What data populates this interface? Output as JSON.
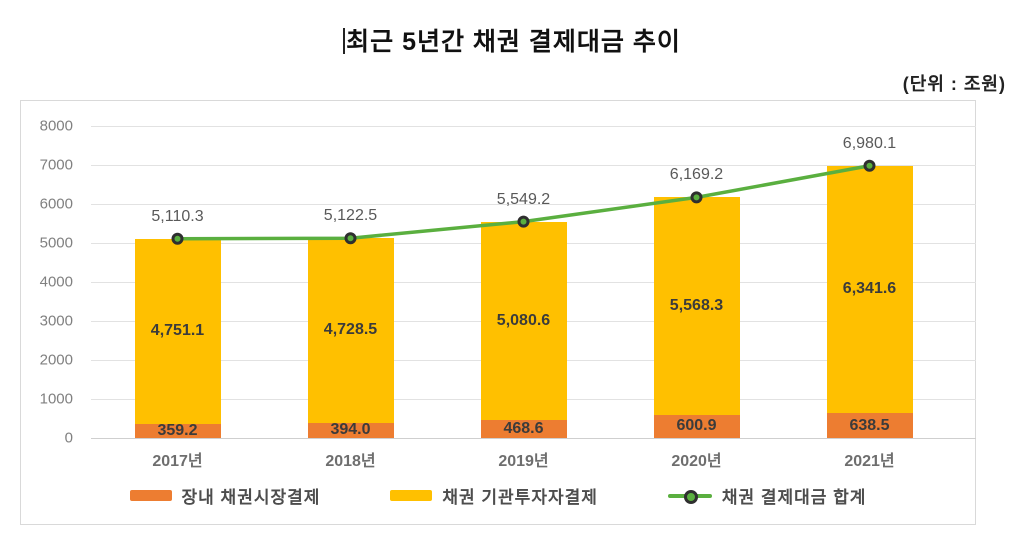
{
  "title": "최근 5년간 채권 결제대금 추이",
  "unit_label": "(단위 : 조원)",
  "colors": {
    "orange": "#ed7d31",
    "yellow": "#ffc000",
    "green_line": "#5aaf3f",
    "marker_ring": "#2f2f2f",
    "marker_fill": "#5aaf3f"
  },
  "chart_data": {
    "type": "bar",
    "stacked": true,
    "title": "최근 5년간 채권 결제대금 추이",
    "unit": "(단위 : 조원)",
    "categories": [
      "2017년",
      "2018년",
      "2019년",
      "2020년",
      "2021년"
    ],
    "series": [
      {
        "name": "장내 채권시장결제",
        "kind": "bar",
        "color": "#ed7d31",
        "values": [
          359.2,
          394.0,
          468.6,
          600.9,
          638.5
        ],
        "labels": [
          "359.2",
          "394.0",
          "468.6",
          "600.9",
          "638.5"
        ]
      },
      {
        "name": "채권 기관투자자결제",
        "kind": "bar",
        "color": "#ffc000",
        "values": [
          4751.1,
          4728.5,
          5080.6,
          5568.3,
          6341.6
        ],
        "labels": [
          "4,751.1",
          "4,728.5",
          "5,080.6",
          "5,568.3",
          "6,341.6"
        ]
      },
      {
        "name": "채권 결제대금 합계",
        "kind": "line",
        "color": "#5aaf3f",
        "values": [
          5110.3,
          5122.5,
          5549.2,
          6169.2,
          6980.1
        ],
        "labels": [
          "5,110.3",
          "5,122.5",
          "5,549.2",
          "6,169.2",
          "6,980.1"
        ]
      }
    ],
    "ylim": [
      0,
      8000
    ],
    "ytick_step": 1000,
    "yticks": [
      "0",
      "1000",
      "2000",
      "3000",
      "4000",
      "5000",
      "6000",
      "7000",
      "8000"
    ],
    "grid": true,
    "legend_position": "bottom-inside"
  }
}
